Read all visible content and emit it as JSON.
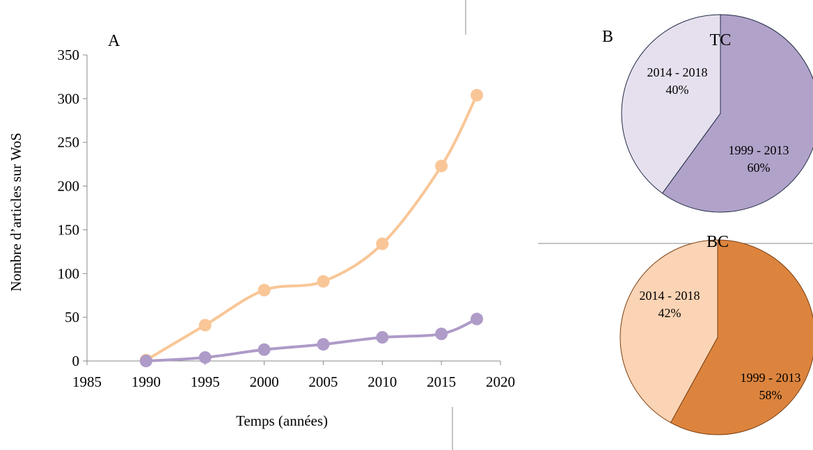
{
  "chart_data": [
    {
      "panel": "A",
      "type": "line",
      "xlabel": "Temps (années)",
      "ylabel": "Nombre d’articles sur WoS",
      "xlim": [
        1985,
        2020
      ],
      "ylim": [
        0,
        350
      ],
      "xticks": [
        1985,
        1990,
        1995,
        2000,
        2005,
        2010,
        2015,
        2020
      ],
      "yticks": [
        0,
        50,
        100,
        150,
        200,
        250,
        300,
        350
      ],
      "smooth": true,
      "grid": false,
      "series": [
        {
          "color": "#F9C697",
          "x": [
            1990,
            1995,
            2000,
            2005,
            2010,
            2015,
            2018
          ],
          "y": [
            1,
            41,
            81,
            91,
            134,
            223,
            304
          ]
        },
        {
          "color": "#AE9BC8",
          "x": [
            1990,
            1995,
            2000,
            2005,
            2010,
            2015,
            2018
          ],
          "y": [
            0,
            4,
            13,
            19,
            27,
            31,
            48
          ]
        }
      ]
    },
    {
      "panel": "B",
      "type": "pie",
      "title": "TC",
      "slices": [
        {
          "label": "1999 - 2013",
          "percent": "60%",
          "value": 60,
          "color": "#B1A2C9"
        },
        {
          "label": "2014 - 2018",
          "percent": "40%",
          "value": 40,
          "color": "#E6E0EE"
        }
      ]
    },
    {
      "panel": "",
      "type": "pie",
      "title": "BC",
      "slices": [
        {
          "label": "1999 - 2013",
          "percent": "58%",
          "value": 58,
          "color": "#DC843E"
        },
        {
          "label": "2014 - 2018",
          "percent": "42%",
          "value": 42,
          "color": "#FBD4B5"
        }
      ]
    }
  ]
}
